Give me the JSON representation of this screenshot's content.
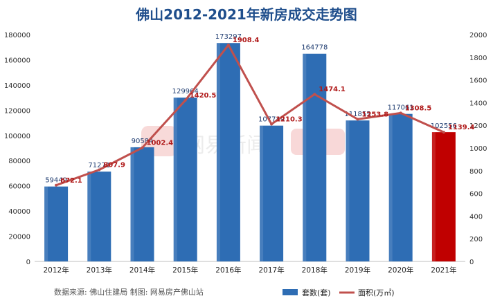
{
  "chart_data": {
    "type": "bar",
    "title": "佛山2012-2021年新房成交走势图",
    "categories": [
      "2012年",
      "2013年",
      "2014年",
      "2015年",
      "2016年",
      "2017年",
      "2018年",
      "2019年",
      "2020年",
      "2021年"
    ],
    "series": [
      {
        "name": "套数(套)",
        "type": "bar",
        "axis": "left",
        "color": "#2e6db4",
        "highlight_color": "#c00000",
        "highlight_index": 9,
        "values": [
          59449,
          71271,
          90584,
          129964,
          173297,
          107749,
          164778,
          111855,
          117061,
          102556
        ]
      },
      {
        "name": "面积(万㎡)",
        "type": "line",
        "axis": "right",
        "color": "#c0504d",
        "values": [
          672.1,
          807.9,
          1002.4,
          1420.5,
          1908.4,
          1210.3,
          1474.1,
          1253.8,
          1308.5,
          1139.4
        ]
      }
    ],
    "y_left": {
      "min": 0,
      "max": 180000,
      "ticks": [
        0,
        20000,
        40000,
        60000,
        80000,
        100000,
        120000,
        140000,
        160000,
        180000
      ]
    },
    "y_right": {
      "min": 0,
      "max": 2000,
      "ticks": [
        0,
        200,
        400,
        600,
        800,
        1000,
        1200,
        1400,
        1600,
        1800,
        2000
      ]
    },
    "grid": false,
    "legend_position": "bottom-right",
    "source_note": "数据来源: 佛山住建局 制图: 网易房产佛山站",
    "watermark": "网易新闻 房产"
  }
}
